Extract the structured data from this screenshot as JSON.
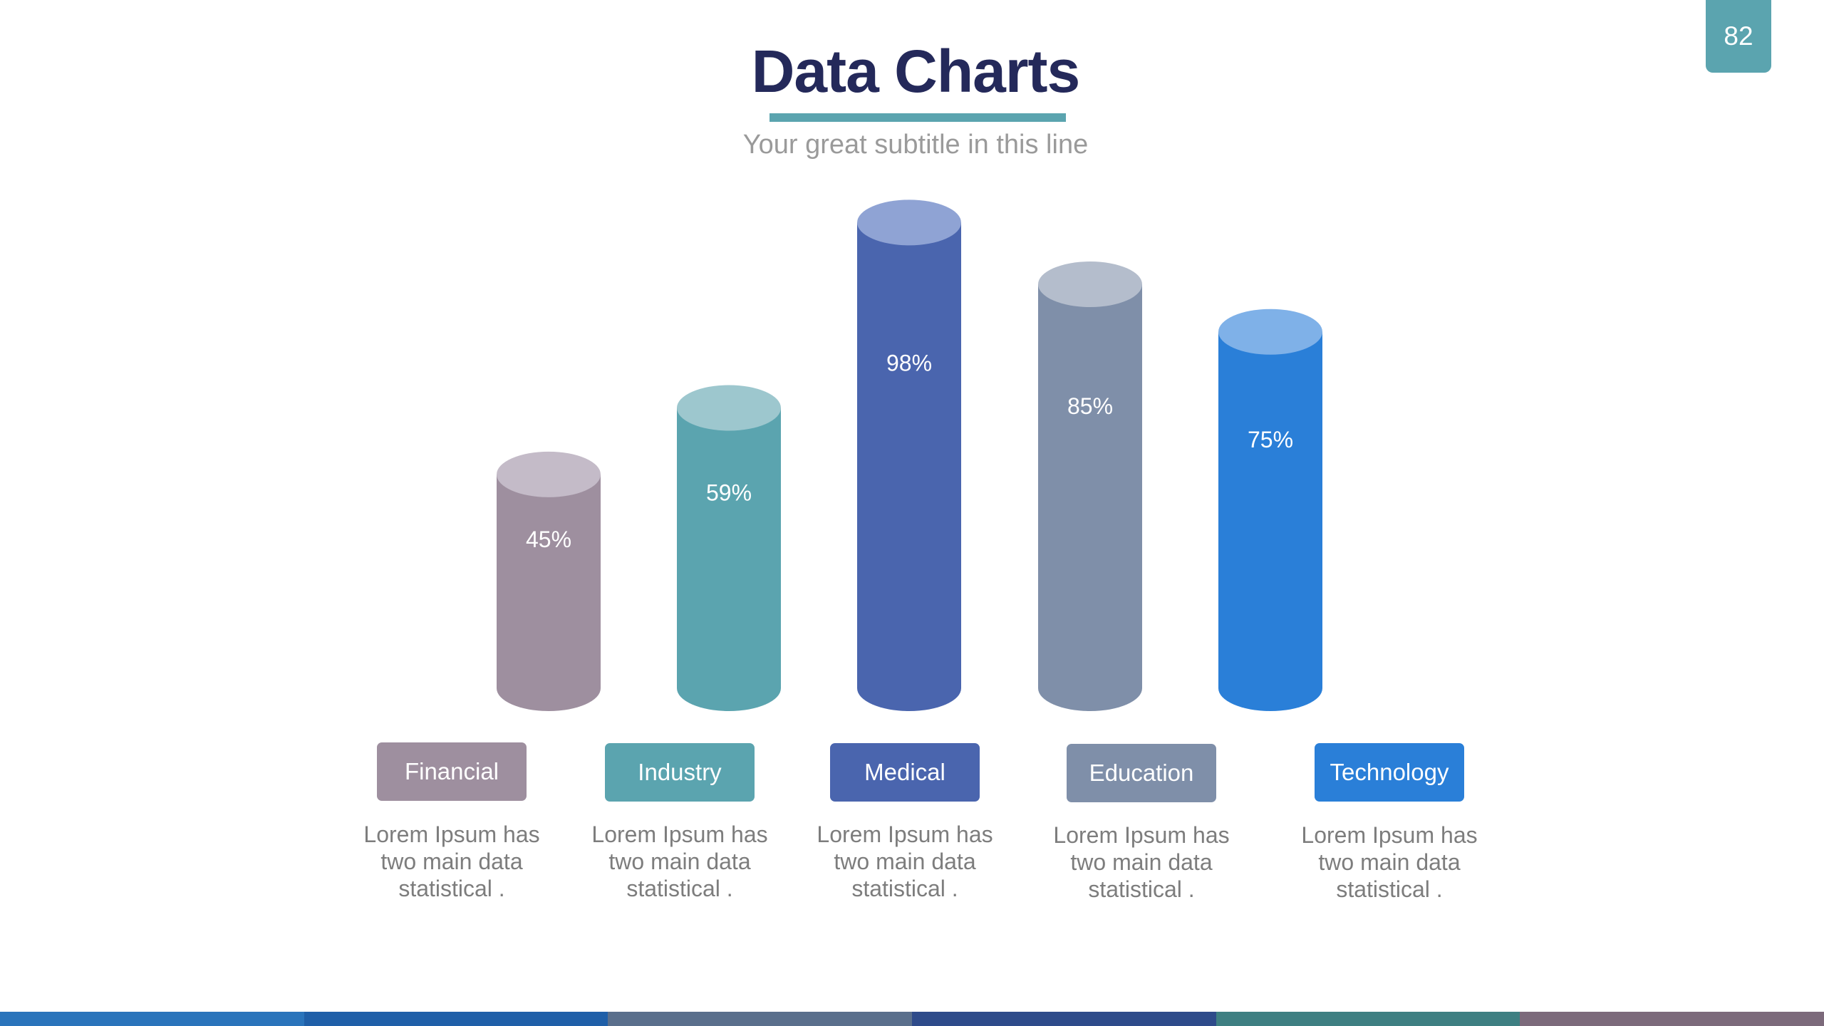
{
  "page": {
    "number": "82",
    "title": "Data Charts",
    "subtitle": "Your great subtitle in this line",
    "accent_color": "#5ba4af",
    "title_color": "#24295a"
  },
  "chart_data": {
    "type": "bar",
    "style": "3d-cylinder",
    "title": "",
    "xlabel": "",
    "ylabel": "",
    "ylim": [
      0,
      100
    ],
    "grid": false,
    "legend": "none",
    "categories": [
      "Financial",
      "Industry",
      "Medical",
      "Education",
      "Technology"
    ],
    "values": [
      45,
      59,
      98,
      85,
      75
    ],
    "value_labels": [
      "45%",
      "59%",
      "98%",
      "85%",
      "75%"
    ],
    "colors": [
      "#9e8f9f",
      "#5ba4af",
      "#4a65ae",
      "#7f8fa9",
      "#2a7fd8"
    ],
    "top_colors": [
      "#c4bbc8",
      "#9dc7ce",
      "#8fa3d4",
      "#b4bdcc",
      "#7fb1e8"
    ]
  },
  "categories": [
    {
      "label": "Financial",
      "color": "#9e8f9f",
      "description": "Lorem Ipsum has two main data statistical ."
    },
    {
      "label": "Industry",
      "color": "#5ba4af",
      "description": "Lorem Ipsum has two main data statistical ."
    },
    {
      "label": "Medical",
      "color": "#4a65ae",
      "description": "Lorem Ipsum has two main data statistical ."
    },
    {
      "label": "Education",
      "color": "#7f8fa9",
      "description": "Lorem Ipsum has two main data statistical ."
    },
    {
      "label": "Technology",
      "color": "#2a7fd8",
      "description": "Lorem Ipsum has two main data statistical ."
    }
  ],
  "footer_stripe_colors": [
    "#2a74bb",
    "#1f5fa8",
    "#5a6f8c",
    "#2e4b8a",
    "#3e7f82",
    "#7c6a7b"
  ]
}
